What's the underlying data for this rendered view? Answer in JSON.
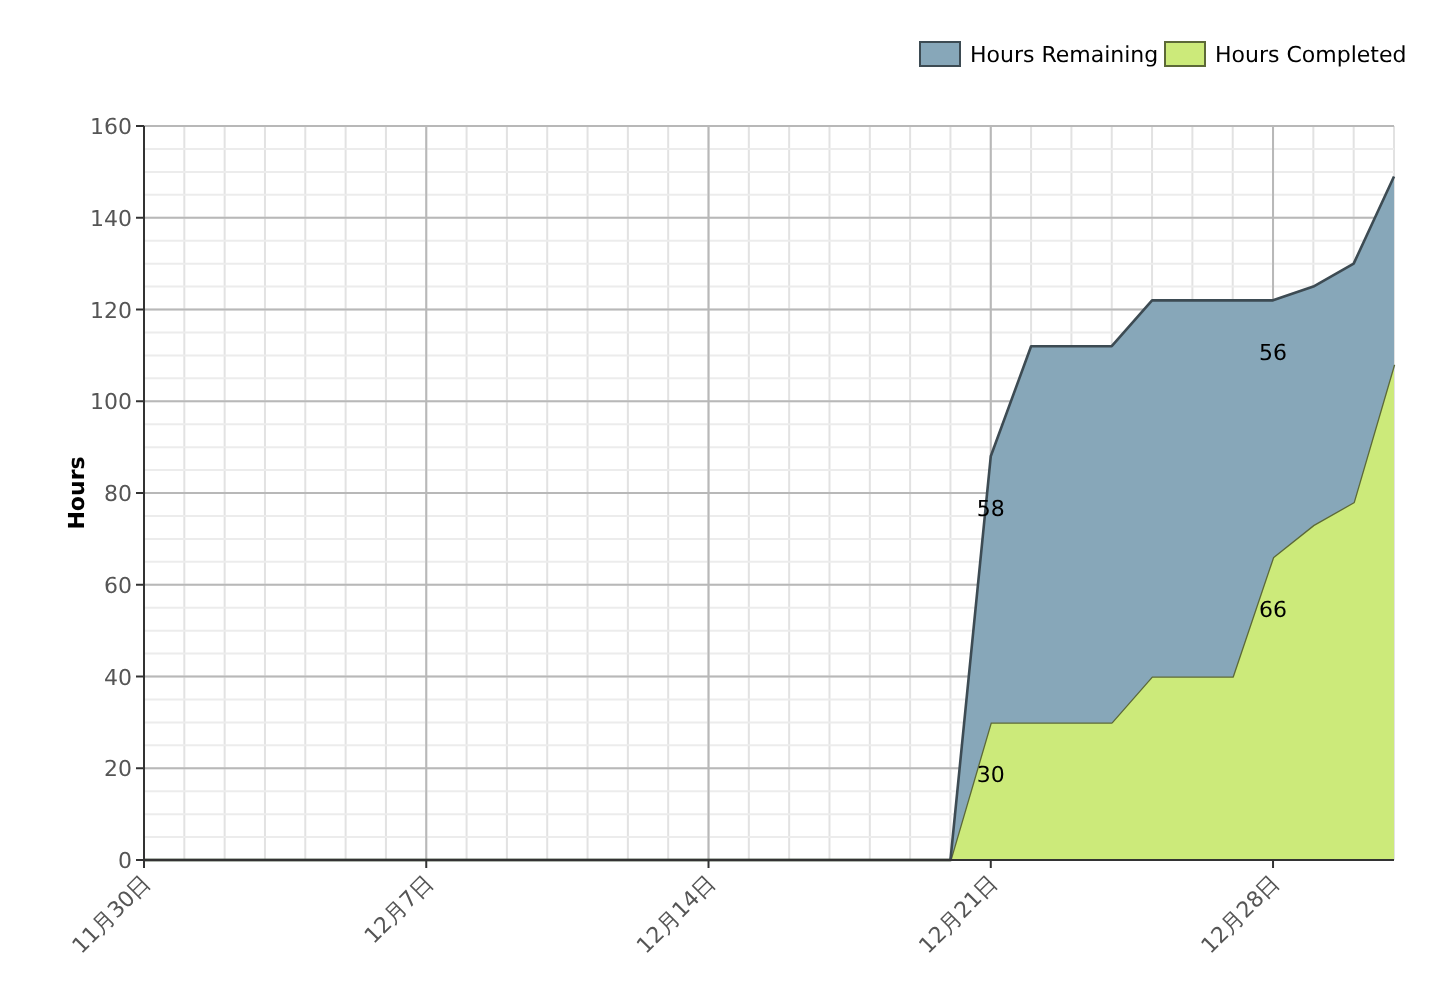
{
  "chart_data": {
    "type": "area",
    "stacked": true,
    "ylabel": "Hours",
    "legend": "top right",
    "grid": true,
    "x": [
      "--11-30",
      "--12-20",
      "--12-21",
      "--12-22",
      "--12-23",
      "--12-24",
      "--12-25",
      "--12-26",
      "--12-27",
      "--12-28",
      "--12-29",
      "--12-30",
      "--12-31"
    ],
    "series": [
      {
        "name": "Hours Completed",
        "color": "#ccea7a",
        "values": [
          0,
          0,
          30,
          30,
          30,
          30,
          40,
          40,
          40,
          66,
          73,
          78,
          108
        ],
        "value_labels": [
          null,
          null,
          "30",
          null,
          null,
          null,
          null,
          null,
          null,
          "66",
          null,
          null,
          null
        ]
      },
      {
        "name": "Hours Remaining",
        "color": "#87a7b9",
        "values": [
          0,
          0,
          58,
          82,
          82,
          82,
          82,
          82,
          82,
          56,
          52,
          52,
          41
        ],
        "value_labels": [
          null,
          null,
          "58",
          null,
          null,
          null,
          null,
          null,
          null,
          "56",
          null,
          null,
          null
        ]
      }
    ],
    "xlim": [
      "--11-30",
      "--12-31"
    ],
    "xticks": [
      {
        "value": "--11-30",
        "label": "11月30日"
      },
      {
        "value": "--12-07",
        "label": "12月7日"
      },
      {
        "value": "--12-14",
        "label": "12月14日"
      },
      {
        "value": "--12-21",
        "label": "12月21日"
      },
      {
        "value": "--12-28",
        "label": "12月28日"
      }
    ],
    "ylim": [
      0,
      160
    ],
    "yticks": [
      0,
      20,
      40,
      60,
      80,
      100,
      120,
      140,
      160
    ]
  }
}
